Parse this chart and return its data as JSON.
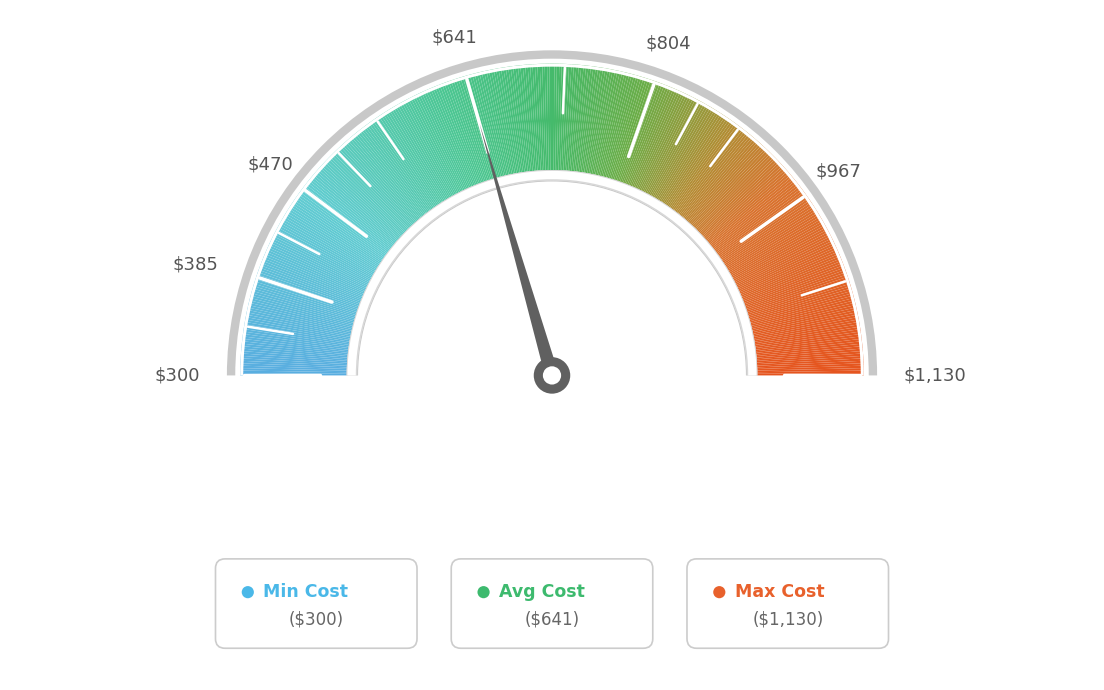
{
  "min_val": 300,
  "max_val": 1130,
  "avg_val": 641,
  "tick_labels": [
    "$300",
    "$385",
    "$470",
    "$641",
    "$804",
    "$967",
    "$1,130"
  ],
  "tick_values": [
    300,
    385,
    470,
    641,
    804,
    967,
    1130
  ],
  "minor_tick_values": [
    300,
    342,
    385,
    427,
    470,
    513,
    556,
    641,
    726,
    804,
    845,
    886,
    967,
    1048,
    1130
  ],
  "legend": [
    {
      "label": "Min Cost",
      "value": "($300)",
      "color": "#4ab8e8"
    },
    {
      "label": "Avg Cost",
      "value": "($641)",
      "color": "#3dba6e"
    },
    {
      "label": "Max Cost",
      "value": "($1,130)",
      "color": "#e8612c"
    }
  ],
  "bg_color": "#ffffff",
  "needle_color": "#606060",
  "color_stops": [
    [
      0.0,
      [
        0.35,
        0.68,
        0.88
      ]
    ],
    [
      0.2,
      [
        0.38,
        0.8,
        0.82
      ]
    ],
    [
      0.38,
      [
        0.3,
        0.78,
        0.58
      ]
    ],
    [
      0.5,
      [
        0.27,
        0.73,
        0.42
      ]
    ],
    [
      0.6,
      [
        0.42,
        0.68,
        0.28
      ]
    ],
    [
      0.7,
      [
        0.7,
        0.55,
        0.2
      ]
    ],
    [
      0.78,
      [
        0.85,
        0.45,
        0.18
      ]
    ],
    [
      1.0,
      [
        0.9,
        0.33,
        0.12
      ]
    ]
  ]
}
